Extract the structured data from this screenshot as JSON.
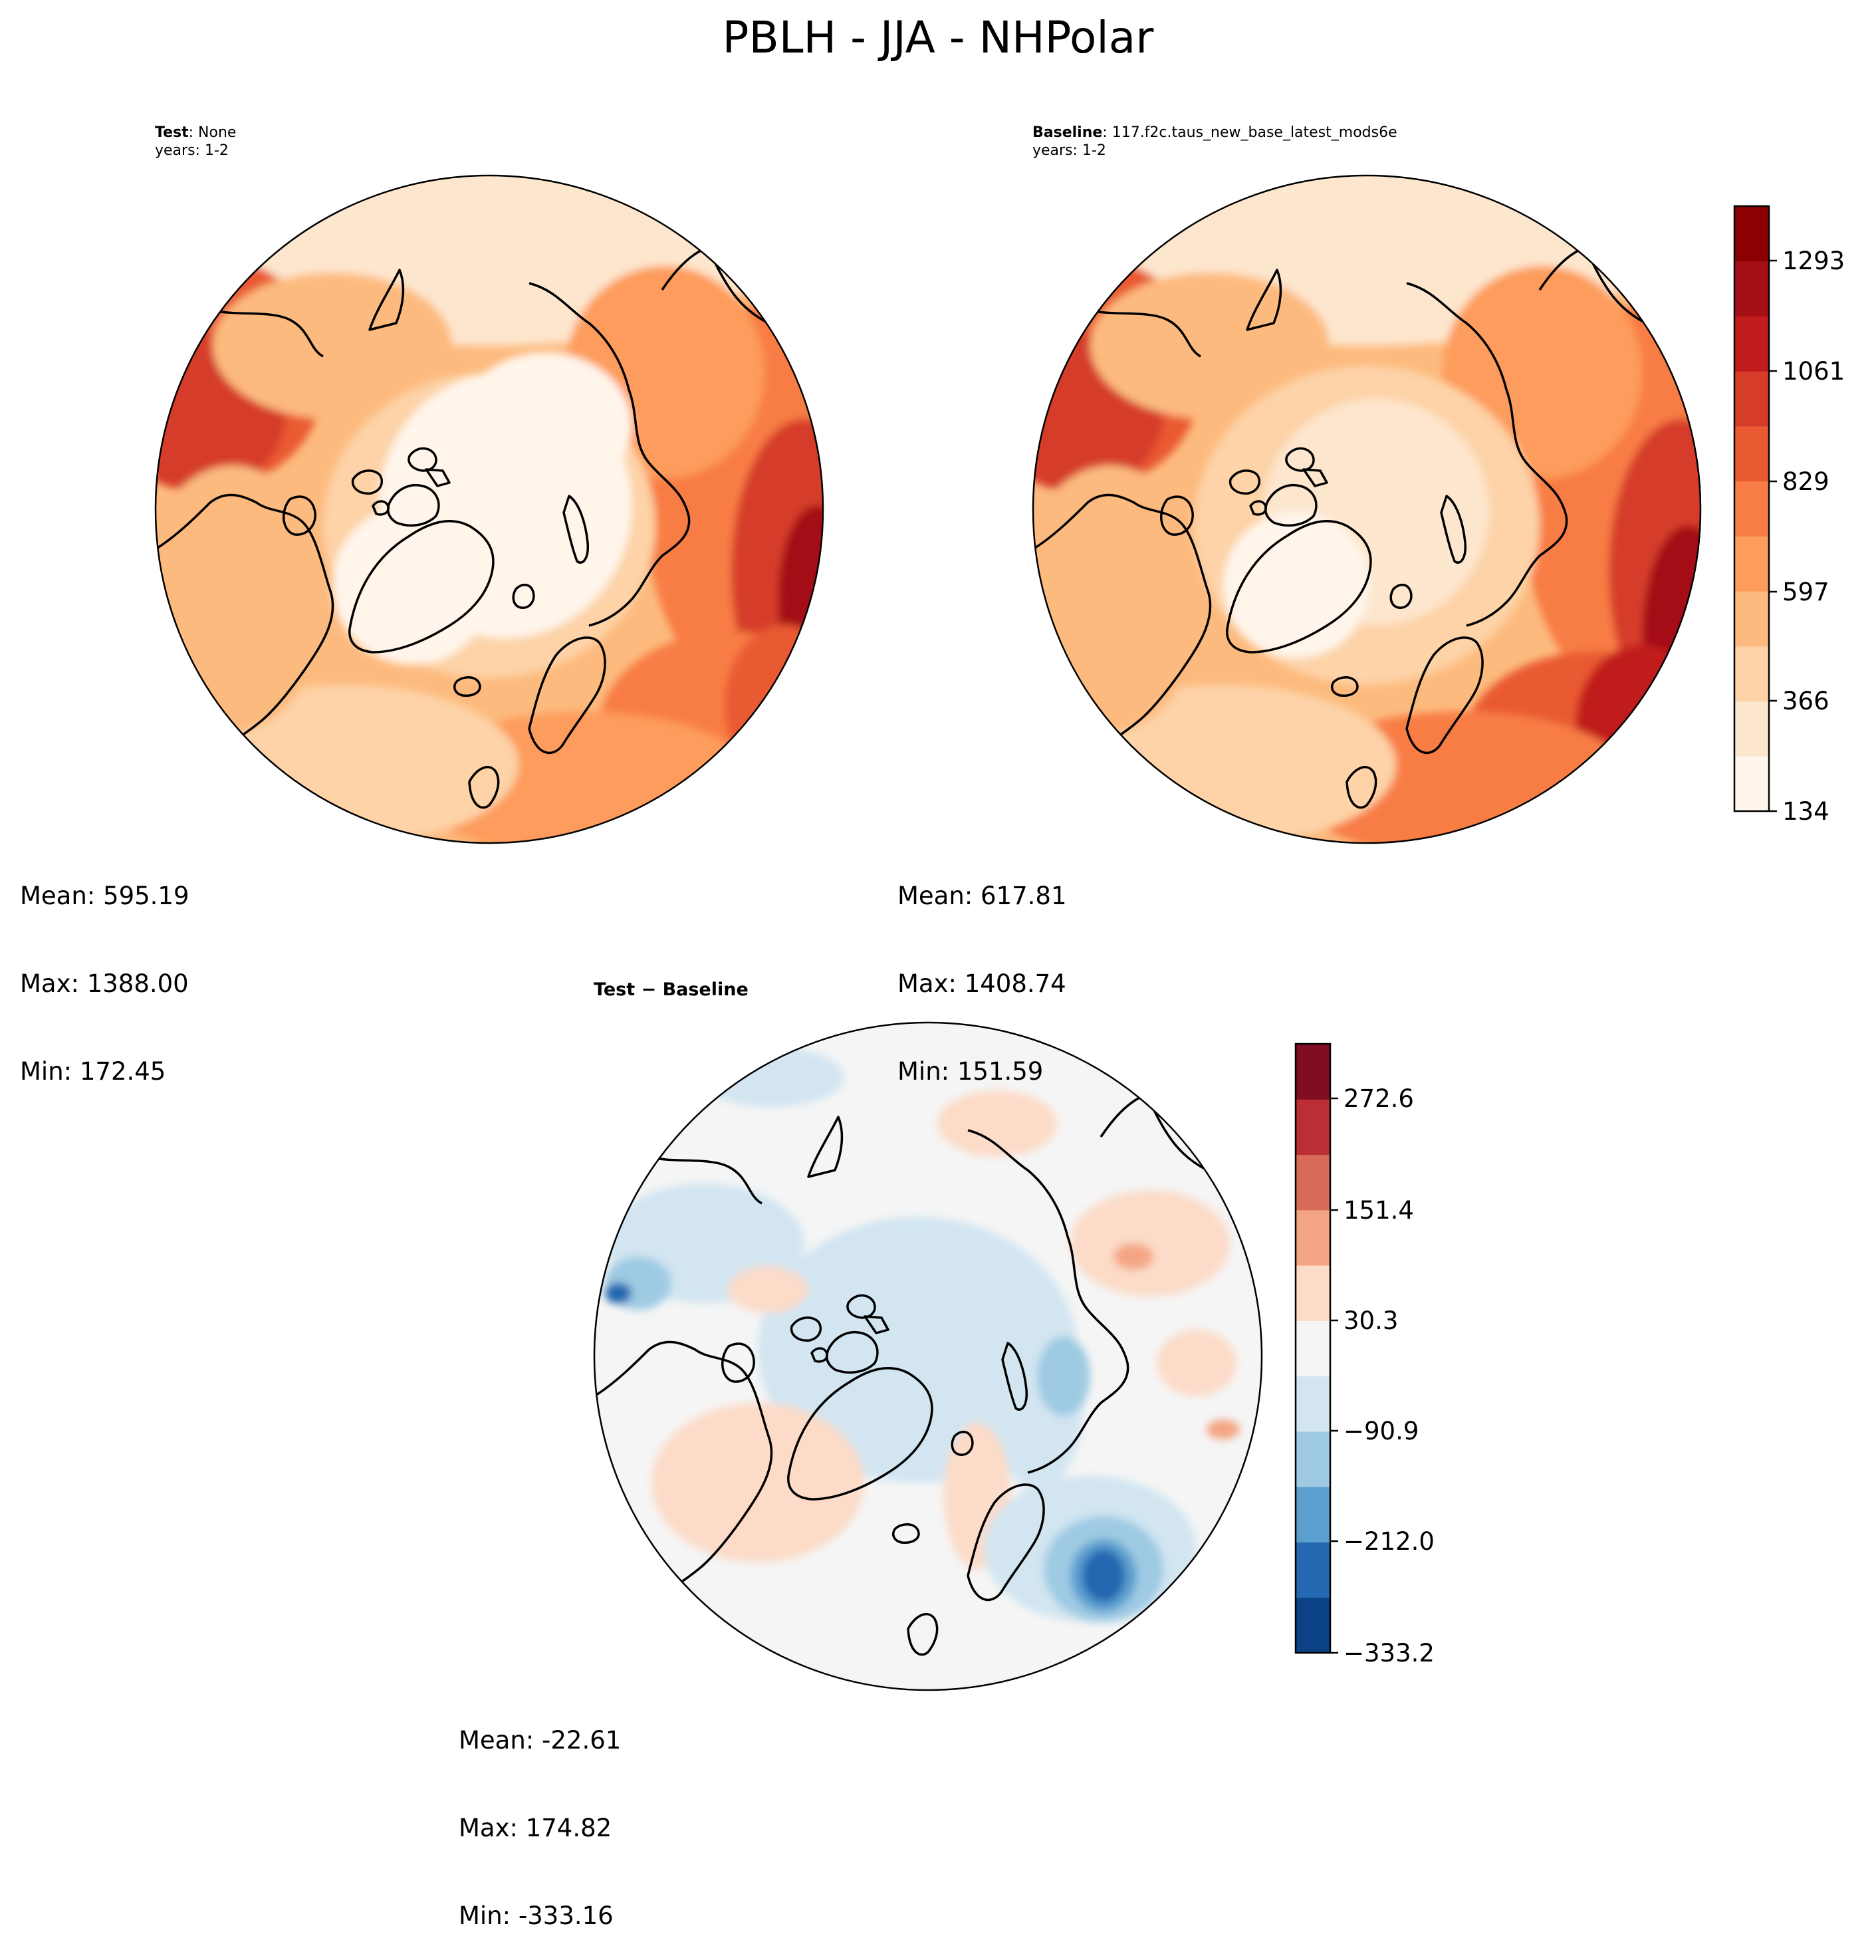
{
  "figure": {
    "title": "PBLH - JJA - NHPolar"
  },
  "panels": {
    "test": {
      "label": "Test",
      "name": ": None",
      "years": "years: 1-2",
      "mean": "Mean: 595.19",
      "max": "Max: 1388.00",
      "min": "Min: 172.45"
    },
    "baseline": {
      "label": "Baseline",
      "name": ": 117.f2c.taus_new_base_latest_mods6e",
      "years": "years: 1-2",
      "mean": "Mean: 617.81",
      "max": "Max: 1408.74",
      "min": "Min: 151.59"
    },
    "diff": {
      "title_a": "Test",
      "title_sep": " − ",
      "title_b": "Baseline",
      "mean": "Mean: -22.61",
      "max": "Max: 174.82",
      "min": "Min: -333.16"
    }
  },
  "chart_data": [
    {
      "type": "heatmap",
      "title": "Test : None",
      "projection": "north-polar-stereographic",
      "colormap": "Reds",
      "levels": [
        134,
        366,
        597,
        829,
        1061,
        1293
      ],
      "stats": {
        "mean": 595.19,
        "max": 1388.0,
        "min": 172.45
      }
    },
    {
      "type": "heatmap",
      "title": "Baseline : 117.f2c.taus_new_base_latest_mods6e",
      "projection": "north-polar-stereographic",
      "colormap": "Reds",
      "colorbar": {
        "ticks": [
          "134",
          "366",
          "597",
          "829",
          "1061",
          "1293"
        ],
        "colors": [
          "#fff5eb",
          "#fde6ce",
          "#fdd3a7",
          "#fdba7e",
          "#fd9c5b",
          "#f87d44",
          "#e95a33",
          "#d53c2a",
          "#c11c1d",
          "#a50f15",
          "#8b0000"
        ]
      },
      "stats": {
        "mean": 617.81,
        "max": 1408.74,
        "min": 151.59
      }
    },
    {
      "type": "heatmap",
      "title": "Test − Baseline",
      "projection": "north-polar-stereographic",
      "colormap": "RdBu_r",
      "colorbar": {
        "ticks": [
          "272.6",
          "151.4",
          "30.3",
          "−90.9",
          "−212.0",
          "−333.2"
        ],
        "colors": [
          "#0b4285",
          "#2468b1",
          "#5b9fcf",
          "#9ecae3",
          "#d2e5f1",
          "#f5f5f5",
          "#fcdbc8",
          "#f4a684",
          "#d86b57",
          "#bb2e33",
          "#800d23"
        ]
      },
      "stats": {
        "mean": -22.61,
        "max": 174.82,
        "min": -333.16
      }
    }
  ]
}
